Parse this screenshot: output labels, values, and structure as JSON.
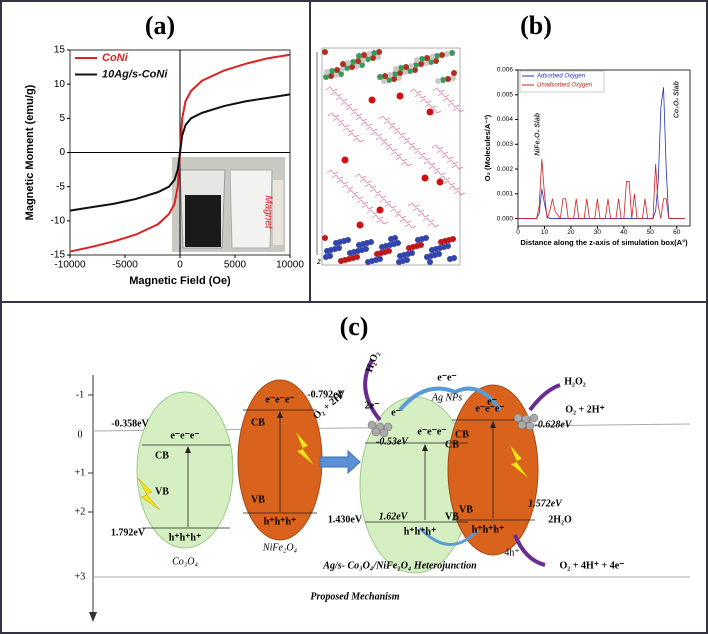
{
  "panel_labels": [
    "(a)",
    "(b)",
    "(c)"
  ],
  "chart_data": [
    {
      "type": "line",
      "xlabel": "Magnetic Field (Oe)",
      "ylabel": "Magnetic Moment (emu/g)",
      "x": [
        -10000,
        -8000,
        -6000,
        -4000,
        -2000,
        -1000,
        -500,
        -200,
        0,
        200,
        500,
        1000,
        2000,
        4000,
        6000,
        8000,
        10000
      ],
      "series": [
        {
          "name": "CoNi",
          "color": "#e02020",
          "values": [
            -14.5,
            -13.8,
            -13,
            -12,
            -10.5,
            -9,
            -7.5,
            -5,
            0,
            5,
            7.5,
            9,
            10.5,
            12,
            13,
            13.8,
            14.3
          ]
        },
        {
          "name": "10Ag/s-CoNi",
          "color": "#111111",
          "values": [
            -8.5,
            -8,
            -7.5,
            -6.8,
            -5.8,
            -5,
            -4,
            -2.5,
            0,
            2.5,
            4,
            5,
            5.8,
            6.8,
            7.5,
            8,
            8.5
          ]
        }
      ],
      "xlim": [
        -10000,
        10000
      ],
      "ylim": [
        -15,
        15
      ],
      "xticks": [
        -10000,
        -5000,
        0,
        5000,
        10000
      ],
      "yticks": [
        -15,
        -10,
        -5,
        0,
        5,
        10,
        15
      ],
      "zero_lines": true,
      "legend": "upper left",
      "inset_label": "Magnet"
    },
    {
      "type": "line",
      "xlabel": "Distance along the z-axis of simulation box(A°)",
      "ylabel": "O₂ (Molecules/A⁻³)",
      "x": [
        0,
        7,
        8,
        9,
        10,
        11,
        12,
        13,
        14,
        16,
        17,
        18,
        19,
        21,
        22,
        23,
        25,
        26,
        27,
        29,
        30,
        31,
        33,
        34,
        35,
        37,
        38,
        39,
        40,
        41,
        42,
        43,
        44,
        45,
        47,
        48,
        49,
        51,
        52,
        53,
        54,
        55,
        56,
        57,
        60,
        63
      ],
      "series": [
        {
          "name": "Adsorbed Oxygen",
          "color": "#2233bb",
          "values": [
            0,
            0,
            0.0002,
            0.0012,
            0.0006,
            0.0001,
            0,
            0,
            0,
            0,
            0,
            0,
            0,
            0,
            0,
            0,
            0,
            0,
            0,
            0,
            0,
            0,
            0,
            0,
            0,
            0,
            0,
            0,
            0,
            0,
            0,
            0,
            0,
            0,
            0,
            0,
            0,
            0,
            0.0003,
            0.0015,
            0.0045,
            0.0053,
            0.002,
            0,
            0,
            0
          ]
        },
        {
          "name": "Unadsorbed Oxygen",
          "color": "#cc2222",
          "values": [
            0,
            0,
            0.0005,
            0.0024,
            0.001,
            0,
            0.0003,
            0.0008,
            0.0003,
            0,
            0.0008,
            0.0008,
            0,
            0,
            0.0008,
            0,
            0,
            0.0008,
            0,
            0,
            0.0008,
            0,
            0,
            0.0008,
            0,
            0,
            0.0008,
            0,
            0,
            0.0015,
            0.0015,
            0,
            0.001,
            0,
            0,
            0.0008,
            0,
            0,
            0.0022,
            0.0005,
            0,
            0.0008,
            0.0008,
            0,
            0,
            0
          ]
        }
      ],
      "xlim": [
        0,
        65
      ],
      "ylim": [
        -0.0003,
        0.006
      ],
      "xticks": [
        0,
        10,
        20,
        30,
        40,
        50,
        60
      ],
      "yticks": [
        {
          "value": 0,
          "label": "0.000"
        },
        {
          "value": 0.001,
          "label": "0.001"
        },
        {
          "value": 0.002,
          "label": "0.002"
        },
        {
          "value": 0.003,
          "label": "0.003"
        },
        {
          "value": 0.004,
          "label": "0.004"
        },
        {
          "value": 0.005,
          "label": "0.005"
        },
        {
          "value": 0.006,
          "label": "0.006"
        }
      ],
      "legend": "upper left",
      "annotations": [
        "NiFe₂O₄ Slab",
        "Co₃O₄ Slab"
      ],
      "axis_letter": "z"
    }
  ],
  "diagram": {
    "axis_labels": [
      "-1",
      "0",
      "+1",
      "+2",
      "+3"
    ],
    "co3o4": {
      "name": "Co₃O₄",
      "cb": "CB",
      "vb": "VB",
      "cb_energy": "-0.358eV",
      "vb_energy": "1.792eV",
      "electrons": "e⁻e⁻e⁻",
      "holes": "h⁺h⁺h⁺"
    },
    "nife2o4": {
      "name": "NiFe₂O₄",
      "cb": "CB",
      "vb": "VB",
      "cb_energy": "-0.792eV",
      "vb_energy": "1.430eV",
      "electrons": "e⁻e⁻e⁻",
      "holes": "h⁺h⁺h⁺"
    },
    "heterojunction": {
      "name": "Ag/s- Co₃O₄/NiFe₂O₄ Heterojunction",
      "left": {
        "cb": "CB",
        "vb": "VB",
        "cb_energy": "-0.53eV",
        "vb_energy": "1.62eV",
        "electrons": "e⁻e⁻e⁻",
        "holes": "h⁺h⁺h⁺"
      },
      "right": {
        "cb": "CB",
        "vb": "VB",
        "cb_energy": "-0.628eV",
        "vb_energy": "1.572eV",
        "electrons": "e⁻e⁻e⁻",
        "holes": "h⁺h⁺h⁺"
      },
      "ag": "Ag NPs",
      "transfer_electrons": "e⁻e⁻",
      "left_e": "e⁻",
      "right_e": "e⁻",
      "left_reactant": "O₂ + 2H⁺",
      "left_electrons": "2e⁻",
      "left_product": "H₂O₂",
      "right_reactant": "O₂ + 2H⁺",
      "right_product": "H₂O₂",
      "holes4": "4h⁺",
      "water": "2H₂O",
      "oxygen": "O₂ + 4H⁺ + 4e⁻"
    },
    "caption": "Proposed Mechanism"
  }
}
